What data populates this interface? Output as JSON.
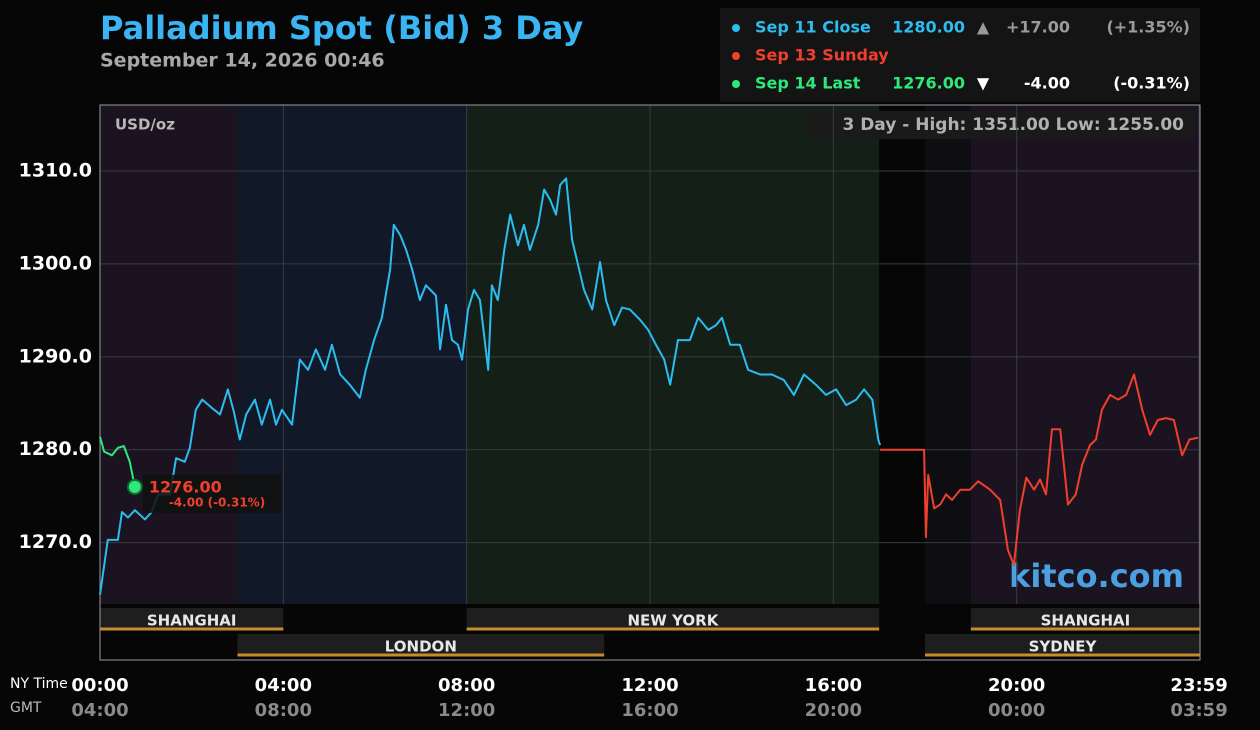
{
  "chart_data": {
    "type": "line",
    "title": "Palladium Spot (Bid) 3 Day",
    "subtitle": "September 14, 2026 00:46",
    "unit_label": "USD/oz",
    "high_low": "3 Day - High: 1351.00  Low: 1255.00",
    "watermark": "kitco.com",
    "xlabel": "NY Time",
    "xlabel2": "GMT",
    "xlim": [
      0,
      24
    ],
    "ylim": [
      1263.4,
      1317.1
    ],
    "xticks": [
      {
        "value": 0,
        "label": "00:00"
      },
      {
        "value": 4,
        "label": "04:00"
      },
      {
        "value": 8,
        "label": "08:00"
      },
      {
        "value": 12,
        "label": "12:00"
      },
      {
        "value": 16,
        "label": "16:00"
      },
      {
        "value": 20,
        "label": "20:00"
      },
      {
        "value": 23.98,
        "label": "23:59"
      }
    ],
    "xtick_labels_gmt": [
      "04:00",
      "08:00",
      "12:00",
      "16:00",
      "20:00",
      "00:00",
      "03:59"
    ],
    "yticks": [
      {
        "value": 1270,
        "label": "1270.0"
      },
      {
        "value": 1280,
        "label": "1280.0"
      },
      {
        "value": 1290,
        "label": "1290.0"
      },
      {
        "value": 1300,
        "label": "1300.0"
      },
      {
        "value": 1310,
        "label": "1310.0"
      }
    ],
    "grid": true,
    "sessions": [
      {
        "name": "SHANGHAI",
        "start": 0,
        "end": 4,
        "color": "#1b1420"
      },
      {
        "name": "LONDON",
        "start": 3,
        "end": 11,
        "color": "#111827"
      },
      {
        "name": "NEW YORK",
        "start": 8,
        "end": 17,
        "color": "#131f17"
      },
      {
        "name": "SYDNEY",
        "start": 18,
        "end": 24,
        "color": "#0d0d12"
      },
      {
        "name": "SHANGHAI",
        "start": 19,
        "end": 24,
        "color": "#1b1420"
      }
    ],
    "series": [
      {
        "name": "Sep 11 Close",
        "color": "#2bbcf0",
        "price_label": "1280.00",
        "arrow": "▲",
        "change_label": "+17.00",
        "percent_label": "(+1.35%)",
        "x": [
          0.0,
          0.17,
          0.39,
          0.48,
          0.61,
          0.76,
          0.98,
          1.13,
          1.27,
          1.53,
          1.66,
          1.85,
          1.96,
          2.09,
          2.23,
          2.44,
          2.62,
          2.79,
          2.92,
          3.05,
          3.19,
          3.38,
          3.53,
          3.71,
          3.84,
          3.97,
          4.19,
          4.36,
          4.54,
          4.71,
          4.91,
          5.06,
          5.24,
          5.45,
          5.67,
          5.8,
          5.98,
          6.15,
          6.33,
          6.41,
          6.55,
          6.68,
          6.81,
          6.98,
          7.11,
          7.33,
          7.42,
          7.55,
          7.68,
          7.81,
          7.9,
          8.03,
          8.16,
          8.29,
          8.47,
          8.55,
          8.68,
          8.82,
          8.95,
          9.12,
          9.25,
          9.38,
          9.56,
          9.69,
          9.82,
          9.95,
          10.04,
          10.17,
          10.3,
          10.43,
          10.56,
          10.74,
          10.91,
          11.04,
          11.22,
          11.39,
          11.56,
          11.78,
          11.96,
          12.13,
          12.31,
          12.44,
          12.61,
          12.87,
          13.05,
          13.27,
          13.44,
          13.57,
          13.75,
          13.96,
          14.14,
          14.4,
          14.66,
          14.92,
          15.14,
          15.36,
          15.62,
          15.84,
          16.06,
          16.28,
          16.5,
          16.67,
          16.85,
          16.98,
          17.02
        ],
        "values": [
          1264.4,
          1270.3,
          1270.3,
          1273.3,
          1272.7,
          1273.5,
          1272.5,
          1273.3,
          1275.2,
          1275.2,
          1279.1,
          1278.7,
          1280.2,
          1284.3,
          1285.4,
          1284.5,
          1283.8,
          1286.5,
          1284.1,
          1281.1,
          1283.8,
          1285.4,
          1282.7,
          1285.4,
          1282.7,
          1284.3,
          1282.7,
          1289.7,
          1288.6,
          1290.8,
          1288.6,
          1291.3,
          1288.1,
          1287.0,
          1285.6,
          1288.6,
          1291.8,
          1294.2,
          1299.4,
          1304.2,
          1303.1,
          1301.5,
          1299.4,
          1296.1,
          1297.7,
          1296.6,
          1290.8,
          1295.6,
          1291.8,
          1291.3,
          1289.7,
          1295.1,
          1297.2,
          1296.1,
          1288.6,
          1297.7,
          1296.1,
          1301.5,
          1305.3,
          1302.0,
          1304.2,
          1301.5,
          1304.2,
          1308.0,
          1306.9,
          1305.3,
          1308.5,
          1309.2,
          1302.6,
          1299.9,
          1297.2,
          1295.1,
          1300.2,
          1296.1,
          1293.4,
          1295.3,
          1295.1,
          1294.0,
          1292.9,
          1291.3,
          1289.7,
          1287.0,
          1291.8,
          1291.8,
          1294.2,
          1292.9,
          1293.4,
          1294.2,
          1291.3,
          1291.3,
          1288.6,
          1288.1,
          1288.1,
          1287.5,
          1285.9,
          1288.1,
          1287.0,
          1285.9,
          1286.5,
          1284.8,
          1285.4,
          1286.5,
          1285.4,
          1281.1,
          1280.5
        ]
      },
      {
        "name": "Sep 13 Sunday",
        "color": "#f0402c",
        "x": [
          17.02,
          17.98,
          18.02,
          18.07,
          18.2,
          18.33,
          18.46,
          18.59,
          18.77,
          18.98,
          19.16,
          19.42,
          19.64,
          19.81,
          19.94,
          20.07,
          20.21,
          20.38,
          20.51,
          20.64,
          20.77,
          20.95,
          21.12,
          21.29,
          21.43,
          21.6,
          21.73,
          21.86,
          22.04,
          22.21,
          22.39,
          22.56,
          22.74,
          22.91,
          23.08,
          23.26,
          23.43,
          23.61,
          23.77,
          23.96
        ],
        "values": [
          1280.0,
          1280.0,
          1270.6,
          1277.3,
          1273.7,
          1274.1,
          1275.2,
          1274.6,
          1275.7,
          1275.7,
          1276.6,
          1275.7,
          1274.6,
          1269.2,
          1267.6,
          1273.5,
          1277.0,
          1275.7,
          1276.8,
          1275.2,
          1282.2,
          1282.2,
          1274.1,
          1275.2,
          1278.4,
          1280.5,
          1281.1,
          1284.3,
          1285.9,
          1285.4,
          1285.9,
          1288.1,
          1284.3,
          1281.6,
          1283.2,
          1283.4,
          1283.2,
          1279.4,
          1281.1,
          1281.3
        ]
      },
      {
        "name": "Sep 14 Last",
        "color": "#2ee87a",
        "price_label": "1276.00",
        "arrow": "▼",
        "change_label": "-4.00",
        "percent_label": "(-0.31%)",
        "x": [
          0.0,
          0.09,
          0.26,
          0.39,
          0.52,
          0.65,
          0.76
        ],
        "values": [
          1281.4,
          1279.8,
          1279.4,
          1280.2,
          1280.4,
          1278.7,
          1276.0
        ]
      }
    ],
    "last_annotation": {
      "price": "1276.00",
      "change": "-4.00 (-0.31%)",
      "color": "#f0402c"
    }
  }
}
